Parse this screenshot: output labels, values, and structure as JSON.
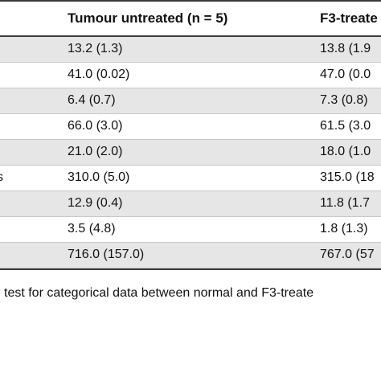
{
  "table": {
    "headers": {
      "col1": "Tumour untreated (n = 5)",
      "col2": "F3-treate"
    },
    "rows": [
      {
        "stub": "",
        "col1": "13.2 (1.3)",
        "col2": "13.8 (1.9"
      },
      {
        "stub": "",
        "col1": "41.0 (0.02)",
        "col2": "47.0 (0.0"
      },
      {
        "stub": "",
        "col1": "6.4 (0.7)",
        "col2": "7.3 (0.8)"
      },
      {
        "stub": "",
        "col1": "66.0 (3.0)",
        "col2": "61.5 (3.0"
      },
      {
        "stub": "",
        "col1": "21.0 (2.0)",
        "col2": "18.0 (1.0"
      },
      {
        "stub": "s",
        "col1": "310.0 (5.0)",
        "col2": "315.0 (18"
      },
      {
        "stub": "",
        "col1": "12.9 (0.4)",
        "col2": "11.8 (1.7"
      },
      {
        "stub": "",
        "col1": "3.5 (4.8)",
        "col2": "1.8 (1.3)"
      },
      {
        "stub": "",
        "col1": "716.0 (157.0)",
        "col2": "767.0 (57"
      }
    ]
  },
  "footnote": "test for categorical data between normal and F3-treate"
}
